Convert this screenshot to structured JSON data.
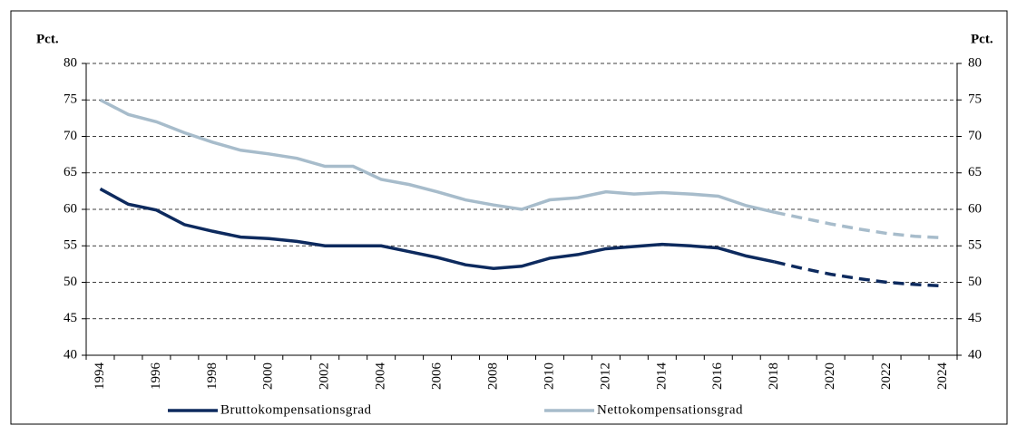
{
  "chart_data": {
    "type": "line",
    "y_label": "Pct.",
    "y2_label": "Pct.",
    "categories": [
      "1994",
      null,
      "1996",
      null,
      "1998",
      null,
      "2000",
      null,
      "2002",
      null,
      "2004",
      null,
      "2006",
      null,
      "2008",
      null,
      "2010",
      null,
      "2012",
      null,
      "2014",
      null,
      "2016",
      null,
      "2018",
      null,
      "2020",
      null,
      "2022",
      null,
      "2024"
    ],
    "forecast_from": "2018",
    "series": [
      {
        "name": "Bruttokompensationsgrad",
        "color": "#0d2a5e",
        "values": [
          62.8,
          60.7,
          59.9,
          57.9,
          57.0,
          56.2,
          56.0,
          55.6,
          55.0,
          55.0,
          55.0,
          54.2,
          53.4,
          52.4,
          51.9,
          52.2,
          53.3,
          53.8,
          54.6,
          54.9,
          55.2,
          55.0,
          54.7,
          53.6,
          52.8,
          51.9,
          51.1,
          50.5,
          50.0,
          49.7,
          49.5
        ]
      },
      {
        "name": "Nettokompensationsgrad",
        "color": "#a7bccb",
        "values": [
          75.0,
          73.0,
          72.0,
          70.5,
          69.2,
          68.1,
          67.6,
          67.0,
          65.9,
          65.9,
          64.1,
          63.4,
          62.4,
          61.3,
          60.6,
          60.0,
          61.3,
          61.6,
          62.4,
          62.1,
          62.3,
          62.1,
          61.8,
          60.5,
          59.6,
          58.8,
          58.0,
          57.3,
          56.7,
          56.3,
          56.1
        ]
      }
    ],
    "ylim": [
      40,
      80
    ],
    "yticks": [
      40,
      45,
      50,
      55,
      60,
      65,
      70,
      75,
      80
    ],
    "y2lim": [
      40,
      80
    ],
    "y2ticks": [
      40,
      45,
      50,
      55,
      60,
      65,
      70,
      75,
      80
    ],
    "grid": true,
    "legend": "bottom"
  }
}
